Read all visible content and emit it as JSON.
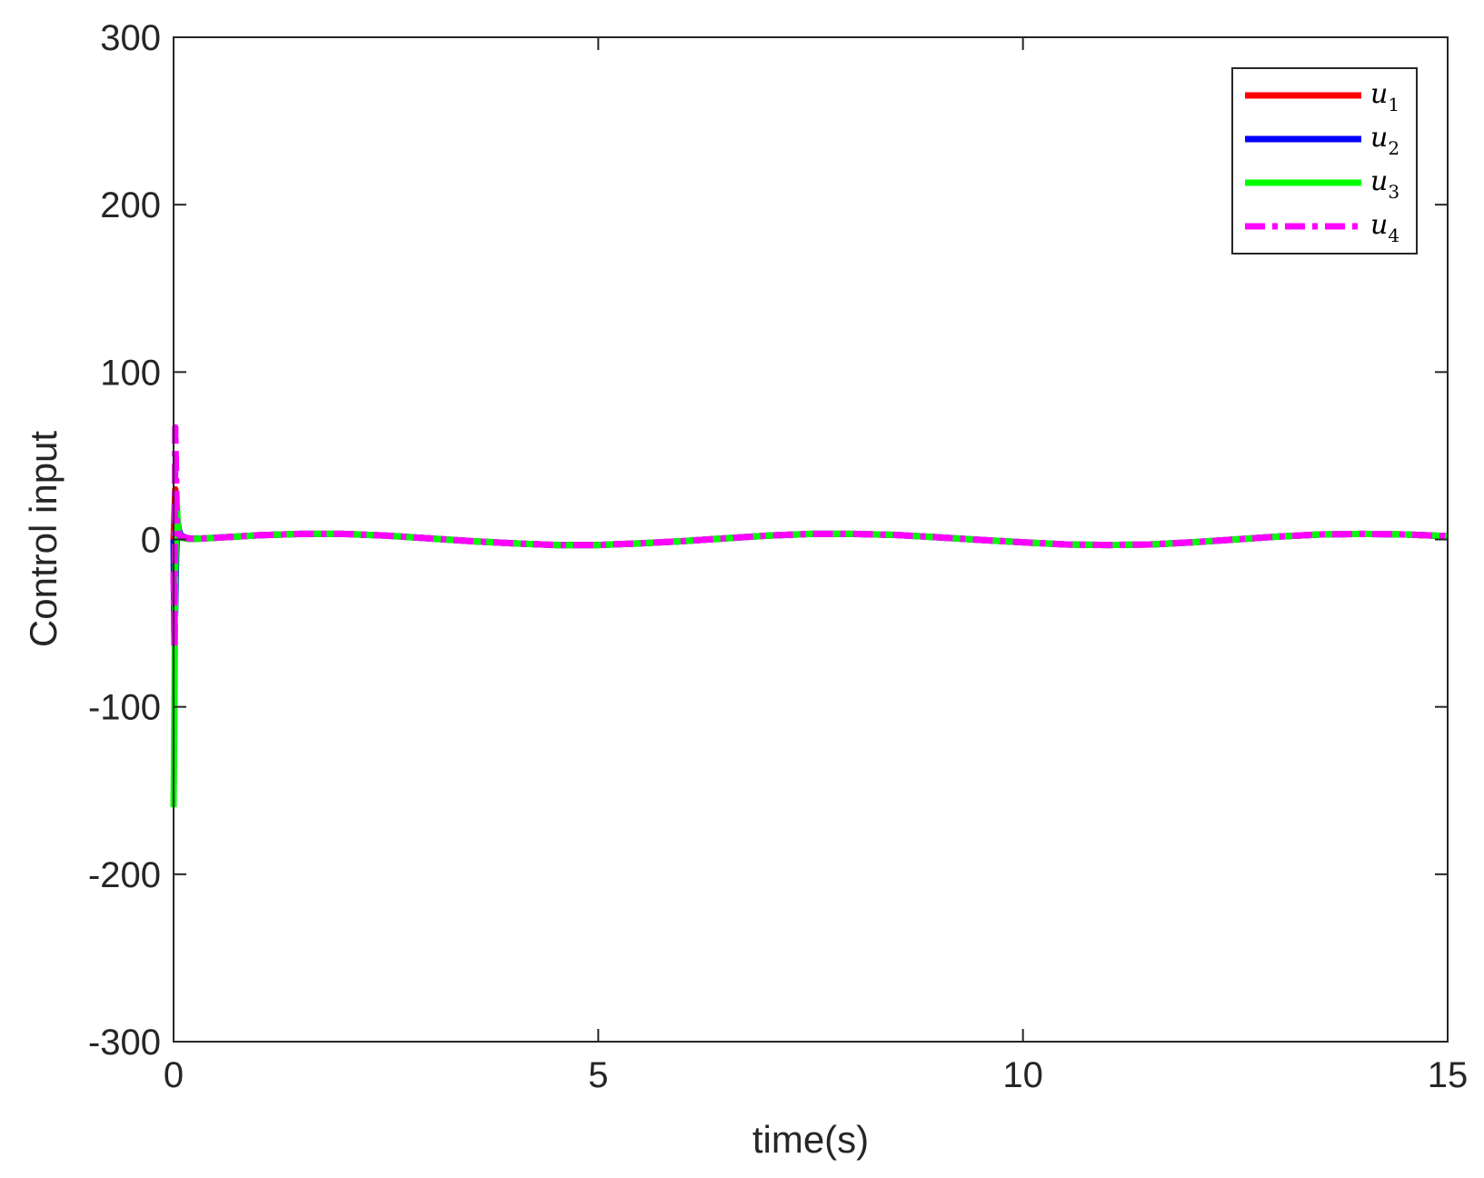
{
  "chart_data": {
    "type": "line",
    "title": "",
    "xlabel": "time(s)",
    "ylabel": "Control input",
    "xlim": [
      0,
      15
    ],
    "ylim": [
      -300,
      300
    ],
    "xticks": [
      0,
      5,
      10,
      15
    ],
    "xtick_labels": [
      "0",
      "5",
      "10",
      "15"
    ],
    "yticks": [
      -300,
      -200,
      -100,
      0,
      100,
      200,
      300
    ],
    "ytick_labels": [
      "-300",
      "-200",
      "-100",
      "0",
      "100",
      "200",
      "300"
    ],
    "grid": false,
    "legend_position": "top-right",
    "x": [
      0,
      0.01,
      0.02,
      0.03,
      0.04,
      0.05,
      0.06,
      0.08,
      0.1,
      0.15,
      0.2,
      0.3,
      0.5,
      1,
      1.5,
      2,
      2.5,
      3,
      3.5,
      4,
      4.5,
      5,
      5.5,
      6,
      6.5,
      7,
      7.5,
      8,
      8.5,
      9,
      9.5,
      10,
      10.5,
      11,
      11.5,
      12,
      12.5,
      13,
      13.5,
      14,
      14.5,
      15
    ],
    "series": [
      {
        "name": "u1",
        "legend_main": "u",
        "legend_sub": "1",
        "color": "#ff0000",
        "style": "solid",
        "values": [
          0,
          15,
          30,
          20,
          10,
          5,
          3,
          2,
          1,
          0.5,
          0.3,
          0.5,
          1,
          2.5,
          3.3,
          3.3,
          2.3,
          0.7,
          -1,
          -2.3,
          -3.3,
          -3.3,
          -2.3,
          -1,
          0.7,
          2.3,
          3.3,
          3.3,
          2.7,
          1.3,
          -0.3,
          -1.7,
          -3,
          -3.3,
          -3,
          -1.7,
          0,
          1.7,
          3,
          3.3,
          3,
          2
        ]
      },
      {
        "name": "u2",
        "legend_main": "u",
        "legend_sub": "2",
        "color": "#0000ff",
        "style": "solid",
        "values": [
          0,
          -60,
          -40,
          -10,
          5,
          10,
          6,
          3,
          2,
          1,
          0.5,
          0.5,
          1,
          2.5,
          3.3,
          3.3,
          2.3,
          0.7,
          -1,
          -2.3,
          -3.3,
          -3.3,
          -2.3,
          -1,
          0.7,
          2.3,
          3.3,
          3.3,
          2.7,
          1.3,
          -0.3,
          -1.7,
          -3,
          -3.3,
          -3,
          -1.7,
          0,
          1.7,
          3,
          3.3,
          3,
          2
        ]
      },
      {
        "name": "u3",
        "legend_main": "u",
        "legend_sub": "3",
        "color": "#00ff00",
        "style": "solid",
        "values": [
          -160,
          -100,
          -20,
          10,
          20,
          8,
          4,
          2,
          1,
          0.5,
          0.3,
          0.5,
          1,
          2.5,
          3.3,
          3.3,
          2.3,
          0.7,
          -1,
          -2.3,
          -3.3,
          -3.3,
          -2.3,
          -1,
          0.7,
          2.3,
          3.3,
          3.3,
          2.7,
          1.3,
          -0.3,
          -1.7,
          -3,
          -3.3,
          -3,
          -1.7,
          0,
          1.7,
          3,
          3.3,
          3,
          2
        ]
      },
      {
        "name": "u4",
        "legend_main": "u",
        "legend_sub": "4",
        "color": "#ff00ff",
        "style": "dashdot",
        "values": [
          -20,
          -65,
          67,
          35,
          10,
          5,
          3,
          2,
          1.5,
          1,
          0.5,
          0.5,
          1,
          2.5,
          3.3,
          3.3,
          2.3,
          0.7,
          -1,
          -2.3,
          -3.3,
          -3.3,
          -2.3,
          -1,
          0.7,
          2.3,
          3.3,
          3.3,
          2.7,
          1.3,
          -0.3,
          -1.7,
          -3,
          -3.3,
          -3,
          -1.7,
          0,
          1.7,
          3,
          3.3,
          3,
          2
        ]
      }
    ]
  }
}
